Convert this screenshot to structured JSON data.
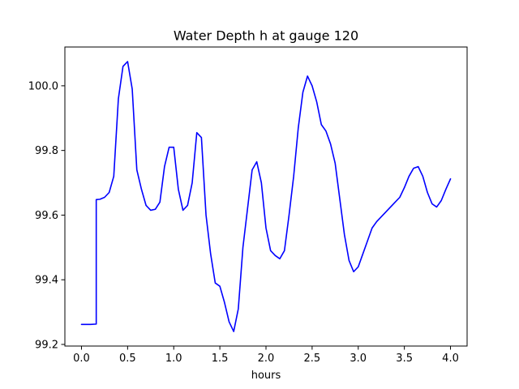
{
  "chart_data": {
    "type": "line",
    "title": "Water Depth h at gauge 120",
    "xlabel": "hours",
    "ylabel": "",
    "xlim": [
      -0.18,
      4.18
    ],
    "ylim": [
      99.195,
      100.12
    ],
    "grid": false,
    "x_ticks": [
      0.0,
      0.5,
      1.0,
      1.5,
      2.0,
      2.5,
      3.0,
      3.5,
      4.0
    ],
    "x_tick_labels": [
      "0.0",
      "0.5",
      "1.0",
      "1.5",
      "2.0",
      "2.5",
      "3.0",
      "3.5",
      "4.0"
    ],
    "y_ticks": [
      99.2,
      99.4,
      99.6,
      99.8,
      100.0
    ],
    "y_tick_labels": [
      "99.2",
      "99.4",
      "99.6",
      "99.8",
      "100.0"
    ],
    "series": [
      {
        "color": "#0000ff",
        "x": [
          0.0,
          0.05,
          0.1,
          0.16,
          0.16,
          0.2,
          0.25,
          0.3,
          0.35,
          0.4,
          0.45,
          0.5,
          0.55,
          0.6,
          0.65,
          0.7,
          0.75,
          0.8,
          0.85,
          0.9,
          0.95,
          1.0,
          1.05,
          1.1,
          1.15,
          1.2,
          1.25,
          1.3,
          1.35,
          1.4,
          1.45,
          1.5,
          1.55,
          1.6,
          1.65,
          1.7,
          1.75,
          1.8,
          1.85,
          1.9,
          1.95,
          2.0,
          2.05,
          2.1,
          2.15,
          2.2,
          2.25,
          2.3,
          2.35,
          2.4,
          2.45,
          2.5,
          2.55,
          2.6,
          2.65,
          2.7,
          2.75,
          2.8,
          2.85,
          2.9,
          2.95,
          3.0,
          3.05,
          3.1,
          3.15,
          3.2,
          3.25,
          3.3,
          3.35,
          3.4,
          3.45,
          3.5,
          3.55,
          3.6,
          3.65,
          3.7,
          3.75,
          3.8,
          3.85,
          3.9,
          3.95,
          4.0
        ],
        "y": [
          99.262,
          99.262,
          99.262,
          99.263,
          99.648,
          99.649,
          99.655,
          99.67,
          99.72,
          99.96,
          100.06,
          100.075,
          99.99,
          99.74,
          99.68,
          99.63,
          99.615,
          99.618,
          99.64,
          99.75,
          99.81,
          99.81,
          99.68,
          99.615,
          99.63,
          99.7,
          99.855,
          99.84,
          99.6,
          99.48,
          99.39,
          99.38,
          99.33,
          99.27,
          99.24,
          99.31,
          99.5,
          99.62,
          99.74,
          99.765,
          99.7,
          99.56,
          99.49,
          99.475,
          99.465,
          99.49,
          99.6,
          99.72,
          99.87,
          99.98,
          100.03,
          100.0,
          99.95,
          99.88,
          99.86,
          99.82,
          99.76,
          99.65,
          99.54,
          99.46,
          99.425,
          99.44,
          99.48,
          99.52,
          99.56,
          99.58,
          99.595,
          99.61,
          99.625,
          99.64,
          99.655,
          99.685,
          99.72,
          99.745,
          99.75,
          99.72,
          99.67,
          99.635,
          99.625,
          99.645,
          99.68,
          99.712
        ]
      }
    ]
  }
}
